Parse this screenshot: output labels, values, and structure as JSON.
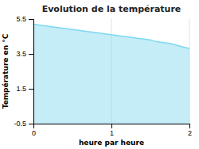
{
  "chart_data": {
    "type": "area",
    "title": "Evolution de la température",
    "xlabel": "heure par heure",
    "ylabel": "Température en °C",
    "x": [
      0,
      0.083,
      0.167,
      0.25,
      0.333,
      0.417,
      0.5,
      0.583,
      0.667,
      0.75,
      0.833,
      0.917,
      1.0,
      1.083,
      1.167,
      1.25,
      1.333,
      1.417,
      1.5,
      1.583,
      1.667,
      1.75,
      1.833,
      1.917,
      2.0
    ],
    "values": [
      5.2,
      5.15,
      5.1,
      5.05,
      5.0,
      4.95,
      4.9,
      4.85,
      4.8,
      4.75,
      4.7,
      4.65,
      4.6,
      4.55,
      4.5,
      4.45,
      4.4,
      4.35,
      4.3,
      4.2,
      4.15,
      4.1,
      4.0,
      3.9,
      3.8
    ],
    "color": "#7dd8f0",
    "xlim": [
      0,
      2
    ],
    "ylim": [
      -0.5,
      5.5
    ],
    "xticks": [
      0,
      1,
      2
    ],
    "yticks": [
      -0.5,
      1.5,
      3.5,
      5.5
    ],
    "grid": "x"
  }
}
